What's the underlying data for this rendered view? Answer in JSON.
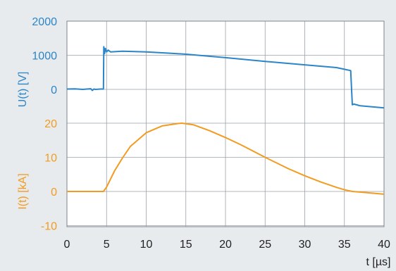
{
  "chart_data": {
    "type": "line",
    "x_axis": {
      "label": "t [µs]",
      "range": [
        0,
        40
      ],
      "ticks": [
        0,
        5,
        10,
        15,
        20,
        25,
        30,
        35,
        40
      ],
      "tick_labels": [
        "0",
        "5",
        "10",
        "15",
        "20",
        "25",
        "30",
        "35",
        "40"
      ]
    },
    "y_axis_upper": {
      "label": "U(t) [V]",
      "ticks": [
        0,
        1000,
        2000
      ],
      "tick_labels": [
        "0",
        "1000",
        "2000"
      ],
      "color": "#2b85c8"
    },
    "y_axis_lower": {
      "label": "I(t) [kA]",
      "ticks": [
        -10,
        0,
        10,
        20
      ],
      "tick_labels": [
        "-10",
        "0",
        "10",
        "20"
      ],
      "color": "#f39b1f"
    },
    "grid": true,
    "series": [
      {
        "axis": "upper",
        "color": "#2b85c8",
        "x": [
          0,
          1,
          2,
          3,
          3.2,
          3.4,
          3.6,
          4.2,
          4.6,
          4.65,
          4.75,
          4.85,
          5.0,
          5.2,
          5.5,
          7,
          10,
          13,
          15,
          20,
          25,
          30,
          34,
          35.2,
          35.8,
          36.0,
          36.2,
          37,
          38,
          39,
          40
        ],
        "y": [
          10,
          15,
          0,
          20,
          -30,
          10,
          0,
          10,
          10,
          1250,
          1050,
          1200,
          1100,
          1150,
          1100,
          1120,
          1100,
          1060,
          1030,
          930,
          820,
          720,
          640,
          580,
          550,
          -450,
          -430,
          -480,
          -500,
          -520,
          -540
        ]
      },
      {
        "axis": "lower",
        "color": "#f39b1f",
        "x": [
          0,
          3,
          4.6,
          5,
          6,
          7,
          8,
          10,
          12,
          14,
          14.5,
          16,
          18,
          20,
          22,
          25,
          28,
          30,
          32,
          34,
          35,
          36,
          38,
          40
        ],
        "y": [
          0,
          0,
          0,
          1.3,
          6,
          9.8,
          13.2,
          17.2,
          19.2,
          19.9,
          20,
          19.5,
          17.8,
          15.8,
          13.6,
          10,
          6.6,
          4.6,
          2.8,
          1.2,
          0.5,
          0,
          -0.4,
          -0.8
        ]
      }
    ]
  }
}
